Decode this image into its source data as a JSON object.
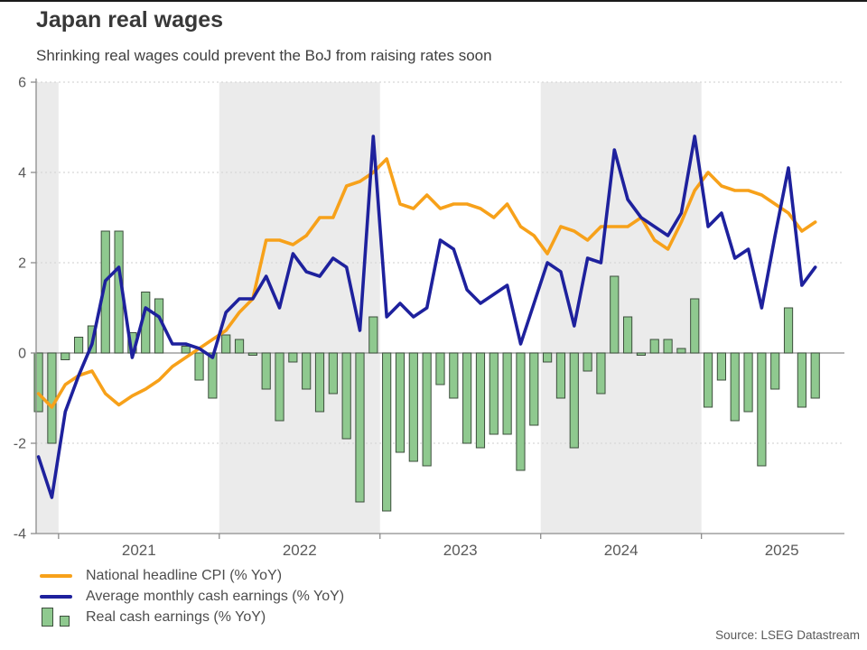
{
  "header": {
    "title": "Japan real wages",
    "subtitle": "Shrinking real wages could prevent the BoJ from raising rates soon"
  },
  "source": "Source: LSEG Datastream",
  "colors": {
    "cpi_orange": "#F7A11A",
    "earnings_blue": "#1E219D",
    "real_green_fill": "#8FC98F",
    "real_green_border": "#3D4F3D",
    "year_band_gray": "#EBEBEB",
    "gridline": "#D8D8D8",
    "axis_gray": "#8C8C8C",
    "label_gray": "#595959"
  },
  "chart_data": {
    "type": "line+bar",
    "title": "Japan real wages",
    "subtitle": "Shrinking real wages could prevent the BoJ from raising rates soon",
    "ylim": [
      -4,
      6
    ],
    "yticks": [
      6,
      4,
      2,
      0,
      -2,
      -4
    ],
    "xticks": [
      "2021",
      "2022",
      "2023",
      "2024",
      "2025"
    ],
    "grid": "dashed horizontal at 6,4,2,-2; solid zero line",
    "legend_position": "bottom-left",
    "shaded_year_bands": [
      "late-2020 (partial)",
      "2022",
      "2024"
    ],
    "x": [
      "2020-11",
      "2020-12",
      "2021-01",
      "2021-02",
      "2021-03",
      "2021-04",
      "2021-05",
      "2021-06",
      "2021-07",
      "2021-08",
      "2021-09",
      "2021-10",
      "2021-11",
      "2021-12",
      "2022-01",
      "2022-02",
      "2022-03",
      "2022-04",
      "2022-05",
      "2022-06",
      "2022-07",
      "2022-08",
      "2022-09",
      "2022-10",
      "2022-11",
      "2022-12",
      "2023-01",
      "2023-02",
      "2023-03",
      "2023-04",
      "2023-05",
      "2023-06",
      "2023-07",
      "2023-08",
      "2023-09",
      "2023-10",
      "2023-11",
      "2023-12",
      "2024-01",
      "2024-02",
      "2024-03",
      "2024-04",
      "2024-05",
      "2024-06",
      "2024-07",
      "2024-08",
      "2024-09",
      "2024-10",
      "2024-11",
      "2024-12",
      "2025-01",
      "2025-02",
      "2025-03",
      "2025-04",
      "2025-05",
      "2025-06",
      "2025-07",
      "2025-08",
      "2025-09"
    ],
    "series": [
      {
        "name": "National headline CPI (% YoY)",
        "type": "line",
        "color": "#F7A11A",
        "values": [
          -0.9,
          -1.2,
          -0.7,
          -0.5,
          -0.4,
          -0.9,
          -1.15,
          -0.95,
          -0.8,
          -0.6,
          -0.3,
          -0.1,
          0.1,
          0.3,
          0.5,
          0.9,
          1.2,
          2.5,
          2.5,
          2.4,
          2.6,
          3.0,
          3.0,
          3.7,
          3.8,
          4.0,
          4.3,
          3.3,
          3.2,
          3.5,
          3.2,
          3.3,
          3.3,
          3.2,
          3.0,
          3.3,
          2.8,
          2.6,
          2.2,
          2.8,
          2.7,
          2.5,
          2.8,
          2.8,
          2.8,
          3.0,
          2.5,
          2.3,
          2.9,
          3.6,
          4.0,
          3.7,
          3.6,
          3.6,
          3.5,
          3.3,
          3.1,
          2.7,
          2.9
        ]
      },
      {
        "name": "Average monthly cash earnings (% YoY)",
        "type": "line",
        "color": "#1E219D",
        "values": [
          -2.3,
          -3.2,
          -1.3,
          -0.5,
          0.2,
          1.6,
          1.9,
          -0.1,
          1.0,
          0.8,
          0.2,
          0.2,
          0.1,
          -0.1,
          0.9,
          1.2,
          1.2,
          1.7,
          1.0,
          2.2,
          1.8,
          1.7,
          2.1,
          1.9,
          0.5,
          4.8,
          0.8,
          1.1,
          0.8,
          1.0,
          2.5,
          2.3,
          1.4,
          1.1,
          1.3,
          1.5,
          0.2,
          1.1,
          2.0,
          1.8,
          0.6,
          2.1,
          2.0,
          4.5,
          3.4,
          3.0,
          2.8,
          2.6,
          3.1,
          4.8,
          2.8,
          3.1,
          2.1,
          2.3,
          1.0,
          2.6,
          4.1,
          1.5,
          1.9
        ]
      },
      {
        "name": "Real cash earnings (% YoY)",
        "type": "bar",
        "color": "#8FC98F",
        "border": "#3D4F3D",
        "values": [
          -1.3,
          -2.0,
          -0.15,
          0.35,
          0.6,
          2.7,
          2.7,
          0.45,
          1.35,
          1.2,
          0.0,
          0.15,
          -0.6,
          -1.0,
          0.4,
          0.3,
          -0.05,
          -0.8,
          -1.5,
          -0.2,
          -0.8,
          -1.3,
          -0.9,
          -1.9,
          -3.3,
          0.8,
          -3.5,
          -2.2,
          -2.4,
          -2.5,
          -0.7,
          -1.0,
          -2.0,
          -2.1,
          -1.8,
          -1.8,
          -2.6,
          -1.6,
          -0.2,
          -1.0,
          -2.1,
          -0.4,
          -0.9,
          1.7,
          0.8,
          -0.05,
          0.3,
          0.3,
          0.1,
          1.2,
          -1.2,
          -0.6,
          -1.5,
          -1.3,
          -2.5,
          -0.8,
          1.0,
          -1.2,
          -1.0
        ]
      }
    ]
  }
}
